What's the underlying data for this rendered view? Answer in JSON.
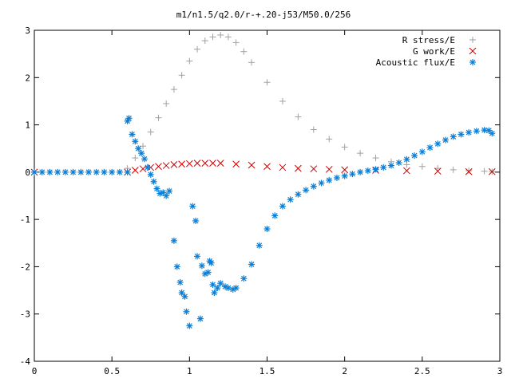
{
  "chart_data": {
    "type": "scatter",
    "title": "m1/n1.5/q2.0/r-+.20-j53/M50.0/256",
    "xlim": [
      0,
      3
    ],
    "ylim": [
      -4,
      3
    ],
    "x_ticks": [
      "0",
      "0.5",
      "1",
      "1.5",
      "2",
      "2.5",
      "3"
    ],
    "y_ticks": [
      "-4",
      "-3",
      "-2",
      "-1",
      "0",
      "1",
      "2",
      "3"
    ],
    "x_tick_values": [
      0,
      0.5,
      1,
      1.5,
      2,
      2.5,
      3
    ],
    "y_tick_values": [
      -4,
      -3,
      -2,
      -1,
      0,
      1,
      2,
      3
    ],
    "grid": false,
    "legend_position": "top-right",
    "series": [
      {
        "name": "R stress/E",
        "marker": "plus",
        "color": "#a0a0a0",
        "x": [
          0,
          0.6,
          0.65,
          0.7,
          0.75,
          0.8,
          0.85,
          0.9,
          0.95,
          1.0,
          1.05,
          1.1,
          1.15,
          1.2,
          1.25,
          1.3,
          1.35,
          1.4,
          1.5,
          1.6,
          1.7,
          1.8,
          1.9,
          2.0,
          2.1,
          2.2,
          2.3,
          2.4,
          2.5,
          2.6,
          2.7,
          2.8,
          2.9,
          2.95
        ],
        "y": [
          0.0,
          0.08,
          0.3,
          0.55,
          0.85,
          1.15,
          1.45,
          1.75,
          2.05,
          2.35,
          2.6,
          2.78,
          2.86,
          2.9,
          2.86,
          2.74,
          2.55,
          2.32,
          1.9,
          1.5,
          1.17,
          0.9,
          0.7,
          0.53,
          0.4,
          0.3,
          0.22,
          0.16,
          0.12,
          0.08,
          0.05,
          0.03,
          0.02,
          0.01
        ]
      },
      {
        "name": "G work/E",
        "marker": "x",
        "color": "#cc0000",
        "x": [
          0,
          0.6,
          0.65,
          0.7,
          0.75,
          0.8,
          0.85,
          0.9,
          0.95,
          1.0,
          1.05,
          1.1,
          1.15,
          1.2,
          1.3,
          1.4,
          1.5,
          1.6,
          1.7,
          1.8,
          1.9,
          2.0,
          2.2,
          2.4,
          2.6,
          2.8,
          2.95
        ],
        "y": [
          0.0,
          0.0,
          0.04,
          0.07,
          0.1,
          0.12,
          0.14,
          0.16,
          0.17,
          0.18,
          0.19,
          0.19,
          0.19,
          0.19,
          0.17,
          0.15,
          0.12,
          0.1,
          0.08,
          0.07,
          0.06,
          0.05,
          0.04,
          0.03,
          0.02,
          0.01,
          0.01
        ]
      },
      {
        "name": "Acoustic flux/E",
        "marker": "star",
        "color": "#0a7fd8",
        "x": [
          0,
          0.05,
          0.1,
          0.15,
          0.2,
          0.25,
          0.3,
          0.35,
          0.4,
          0.45,
          0.5,
          0.55,
          0.6,
          0.6,
          0.61,
          0.63,
          0.65,
          0.67,
          0.69,
          0.71,
          0.73,
          0.75,
          0.77,
          0.79,
          0.81,
          0.83,
          0.85,
          0.87,
          0.9,
          0.92,
          0.94,
          0.95,
          0.97,
          0.98,
          1.0,
          1.02,
          1.04,
          1.05,
          1.07,
          1.08,
          1.1,
          1.12,
          1.13,
          1.14,
          1.15,
          1.16,
          1.18,
          1.2,
          1.23,
          1.25,
          1.28,
          1.3,
          1.35,
          1.4,
          1.45,
          1.5,
          1.55,
          1.6,
          1.65,
          1.7,
          1.75,
          1.8,
          1.85,
          1.9,
          1.95,
          2.0,
          2.05,
          2.1,
          2.15,
          2.2,
          2.25,
          2.3,
          2.35,
          2.4,
          2.45,
          2.5,
          2.55,
          2.6,
          2.65,
          2.7,
          2.75,
          2.8,
          2.85,
          2.9,
          2.93,
          2.95
        ],
        "y": [
          0,
          0,
          0,
          0,
          0,
          0,
          0,
          0,
          0,
          0,
          0,
          0,
          0,
          1.08,
          1.14,
          0.8,
          0.65,
          0.5,
          0.4,
          0.28,
          0.1,
          -0.05,
          -0.2,
          -0.35,
          -0.45,
          -0.43,
          -0.5,
          -0.4,
          -1.45,
          -2.0,
          -2.33,
          -2.55,
          -2.63,
          -2.95,
          -3.25,
          -0.72,
          -1.03,
          -1.78,
          -3.1,
          -1.98,
          -2.15,
          -2.12,
          -1.88,
          -1.92,
          -2.38,
          -2.55,
          -2.45,
          -2.35,
          -2.42,
          -2.45,
          -2.48,
          -2.45,
          -2.25,
          -1.95,
          -1.55,
          -1.2,
          -0.92,
          -0.72,
          -0.58,
          -0.47,
          -0.38,
          -0.3,
          -0.23,
          -0.17,
          -0.12,
          -0.08,
          -0.04,
          0.0,
          0.03,
          0.06,
          0.1,
          0.14,
          0.2,
          0.27,
          0.35,
          0.43,
          0.52,
          0.6,
          0.68,
          0.75,
          0.8,
          0.84,
          0.87,
          0.89,
          0.88,
          0.82
        ]
      }
    ]
  }
}
